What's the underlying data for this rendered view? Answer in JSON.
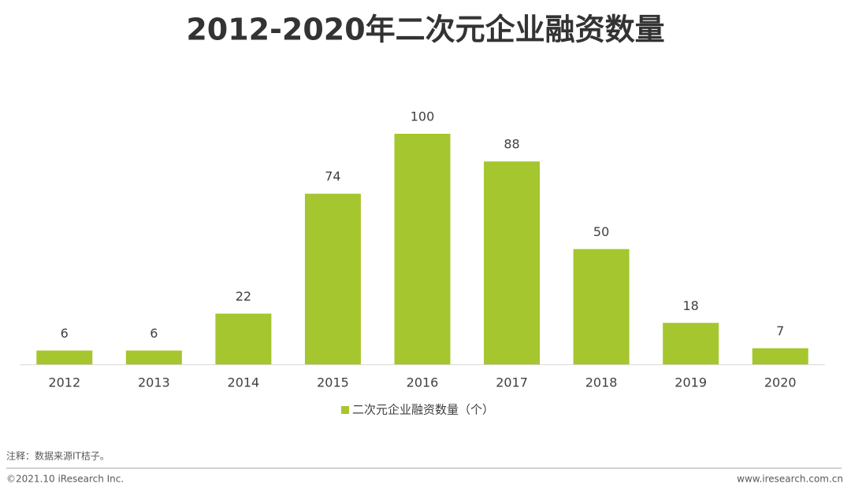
{
  "chart_data": {
    "type": "bar",
    "title": "2012-2020年二次元企业融资数量",
    "categories": [
      "2012",
      "2013",
      "2014",
      "2015",
      "2016",
      "2017",
      "2018",
      "2019",
      "2020"
    ],
    "series": [
      {
        "name": "二次元企业融资数量（个）",
        "color": "#a5c62e",
        "values": [
          6,
          6,
          22,
          74,
          100,
          88,
          50,
          18,
          7
        ]
      }
    ]
  },
  "note": "注释：数据来源IT桔子。",
  "footer": {
    "left": "©2021.10 iResearch Inc.",
    "right": "www.iresearch.com.cn"
  }
}
